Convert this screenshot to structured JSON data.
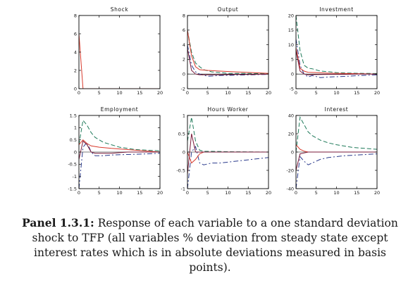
{
  "caption": {
    "label": "Panel 1.3.1:",
    "text": "Response of each variable to a one standard deviation shock to TFP (all variables % deviation from steady state except interest rates which is in absolute deviations measured in basis points)."
  },
  "colors": {
    "red": "#d83a2c",
    "green": "#1f7a5a",
    "blue": "#2a3a8c",
    "purple": "#7a1a3a",
    "axis": "#000000"
  },
  "chart_data": [
    {
      "type": "line",
      "title": "Shock",
      "xlim": [
        0,
        20
      ],
      "ylim": [
        0,
        8
      ],
      "xticks": [
        0,
        5,
        10,
        15,
        20
      ],
      "yticks": [
        0,
        2,
        4,
        6,
        8
      ],
      "series": [
        {
          "color": "red",
          "style": "solid",
          "x": [
            0,
            1,
            2,
            3,
            4,
            5,
            6,
            7,
            8,
            9,
            10,
            11,
            12,
            13,
            14,
            15,
            16,
            17,
            18,
            19,
            20
          ],
          "y": [
            6,
            0,
            0,
            0,
            0,
            0,
            0,
            0,
            0,
            0,
            0,
            0,
            0,
            0,
            0,
            0,
            0,
            0,
            0,
            0,
            0
          ]
        }
      ]
    },
    {
      "type": "line",
      "title": "Output",
      "xlim": [
        0,
        20
      ],
      "ylim": [
        -2,
        8
      ],
      "xticks": [
        0,
        5,
        10,
        15,
        20
      ],
      "yticks": [
        -2,
        0,
        2,
        4,
        6,
        8
      ],
      "series": [
        {
          "color": "green",
          "style": "dash",
          "x": [
            0,
            1,
            2,
            3,
            4,
            6,
            8,
            10,
            14,
            20
          ],
          "y": [
            6,
            3,
            1.5,
            1,
            0.6,
            0.3,
            0.2,
            0.1,
            0.1,
            0.05
          ]
        },
        {
          "color": "blue",
          "style": "dashdot",
          "x": [
            0,
            1,
            2,
            3,
            5,
            8,
            12,
            16,
            20
          ],
          "y": [
            4,
            1.2,
            0.3,
            0,
            -0.3,
            -0.2,
            -0.15,
            -0.1,
            -0.05
          ]
        },
        {
          "color": "red",
          "style": "solid",
          "x": [
            0,
            1,
            2,
            3,
            5,
            8,
            12,
            16,
            20
          ],
          "y": [
            6,
            2.5,
            1,
            0.6,
            0.5,
            0.4,
            0.3,
            0.2,
            0.1
          ]
        },
        {
          "color": "purple",
          "style": "solid",
          "x": [
            0,
            1,
            2,
            3,
            4,
            8,
            12,
            16,
            20
          ],
          "y": [
            3.5,
            0.5,
            0,
            -0.1,
            -0.1,
            -0.1,
            -0.05,
            -0.05,
            0
          ]
        }
      ]
    },
    {
      "type": "line",
      "title": "Investment",
      "xlim": [
        0,
        20
      ],
      "ylim": [
        -5,
        20
      ],
      "xticks": [
        0,
        5,
        10,
        15,
        20
      ],
      "yticks": [
        -5,
        0,
        5,
        10,
        15,
        20
      ],
      "series": [
        {
          "color": "green",
          "style": "dash",
          "x": [
            0,
            1,
            2,
            3,
            4,
            6,
            8,
            10,
            14,
            20
          ],
          "y": [
            20,
            8,
            3,
            2,
            1.8,
            1,
            0.8,
            0.5,
            0.3,
            0.2
          ]
        },
        {
          "color": "blue",
          "style": "dashdot",
          "x": [
            0,
            1,
            2,
            3,
            4,
            6,
            8,
            12,
            16,
            20
          ],
          "y": [
            12,
            3,
            0,
            -1,
            -0.5,
            -1.2,
            -1,
            -0.8,
            -0.5,
            -0.3
          ]
        },
        {
          "color": "red",
          "style": "solid",
          "x": [
            0,
            1,
            2,
            3,
            5,
            8,
            12,
            16,
            20
          ],
          "y": [
            9,
            2,
            1,
            0.6,
            0.5,
            0.3,
            0.2,
            0.1,
            0
          ]
        },
        {
          "color": "purple",
          "style": "solid",
          "x": [
            0,
            1,
            2,
            3,
            4,
            8,
            12,
            16,
            20
          ],
          "y": [
            8,
            1,
            0,
            -0.3,
            -0.2,
            -0.1,
            -0.1,
            0,
            0
          ]
        }
      ]
    },
    {
      "type": "line",
      "title": "Employment",
      "xlim": [
        0,
        20
      ],
      "ylim": [
        -1.5,
        1.5
      ],
      "xticks": [
        0,
        5,
        10,
        15,
        20
      ],
      "yticks": [
        -1.5,
        -1,
        -0.5,
        0,
        0.5,
        1,
        1.5
      ],
      "series": [
        {
          "color": "green",
          "style": "dash",
          "x": [
            0,
            1,
            2,
            3,
            4,
            6,
            8,
            10,
            14,
            20
          ],
          "y": [
            0.3,
            1.3,
            1.1,
            0.8,
            0.6,
            0.4,
            0.3,
            0.2,
            0.1,
            0.05
          ]
        },
        {
          "color": "blue",
          "style": "dashdot",
          "x": [
            0,
            1,
            2,
            3,
            4,
            6,
            8,
            12,
            16,
            20
          ],
          "y": [
            -1.5,
            0.2,
            0.4,
            0,
            -0.15,
            -0.15,
            -0.12,
            -0.1,
            -0.08,
            -0.05
          ]
        },
        {
          "color": "red",
          "style": "solid",
          "x": [
            0,
            1,
            2,
            3,
            5,
            8,
            12,
            16,
            20
          ],
          "y": [
            0.3,
            0.5,
            0.35,
            0.25,
            0.2,
            0.15,
            0.1,
            0.05,
            0
          ]
        },
        {
          "color": "purple",
          "style": "solid",
          "x": [
            0,
            1,
            2,
            3,
            4,
            8,
            12,
            16,
            20
          ],
          "y": [
            -0.3,
            0.45,
            0.3,
            0,
            -0.05,
            -0.05,
            0,
            0,
            0
          ]
        }
      ]
    },
    {
      "type": "line",
      "title": "Hours Worker",
      "xlim": [
        0,
        20
      ],
      "ylim": [
        -1,
        1
      ],
      "xticks": [
        0,
        5,
        10,
        15,
        20
      ],
      "yticks": [
        -1,
        -0.5,
        0,
        0.5,
        1
      ],
      "series": [
        {
          "color": "green",
          "style": "dash",
          "x": [
            0,
            1,
            2,
            3,
            4,
            6,
            10,
            20
          ],
          "y": [
            0.3,
            0.95,
            0.3,
            0.05,
            0.02,
            0.02,
            0.01,
            0
          ]
        },
        {
          "color": "blue",
          "style": "dashdot",
          "x": [
            0,
            1,
            2,
            3,
            4,
            6,
            8,
            12,
            16,
            20
          ],
          "y": [
            -1,
            0,
            0.15,
            -0.3,
            -0.35,
            -0.3,
            -0.3,
            -0.25,
            -0.2,
            -0.15
          ]
        },
        {
          "color": "red",
          "style": "solid",
          "x": [
            0,
            1,
            2,
            3,
            4,
            6,
            10,
            20
          ],
          "y": [
            0,
            -0.3,
            -0.2,
            -0.05,
            0,
            0,
            0,
            0
          ]
        },
        {
          "color": "purple",
          "style": "solid",
          "x": [
            0,
            1,
            2,
            3,
            4,
            8,
            12,
            16,
            20
          ],
          "y": [
            -0.6,
            0.5,
            0,
            0,
            0,
            0,
            0,
            0,
            0
          ]
        }
      ]
    },
    {
      "type": "line",
      "title": "Interest",
      "xlim": [
        0,
        20
      ],
      "ylim": [
        -40,
        40
      ],
      "xticks": [
        0,
        5,
        10,
        15,
        20
      ],
      "yticks": [
        -40,
        -20,
        0,
        20,
        40
      ],
      "series": [
        {
          "color": "green",
          "style": "dash",
          "x": [
            0,
            1,
            2,
            3,
            4,
            6,
            8,
            10,
            14,
            20
          ],
          "y": [
            0,
            38,
            30,
            22,
            18,
            13,
            10,
            8,
            5,
            3
          ]
        },
        {
          "color": "blue",
          "style": "dashdot",
          "x": [
            0,
            1,
            2,
            3,
            4,
            6,
            8,
            12,
            16,
            20
          ],
          "y": [
            -40,
            -5,
            -10,
            -14,
            -12,
            -8,
            -6,
            -4,
            -3,
            -2
          ]
        },
        {
          "color": "red",
          "style": "solid",
          "x": [
            0,
            1,
            2,
            3,
            5,
            8,
            12,
            16,
            20
          ],
          "y": [
            8,
            3,
            1,
            0,
            0,
            0,
            0,
            0,
            0
          ]
        },
        {
          "color": "purple",
          "style": "solid",
          "x": [
            0,
            1,
            2,
            3,
            4,
            8,
            12,
            16,
            20
          ],
          "y": [
            -20,
            -2,
            -1,
            0,
            0,
            0,
            0,
            0,
            0
          ]
        }
      ]
    }
  ]
}
